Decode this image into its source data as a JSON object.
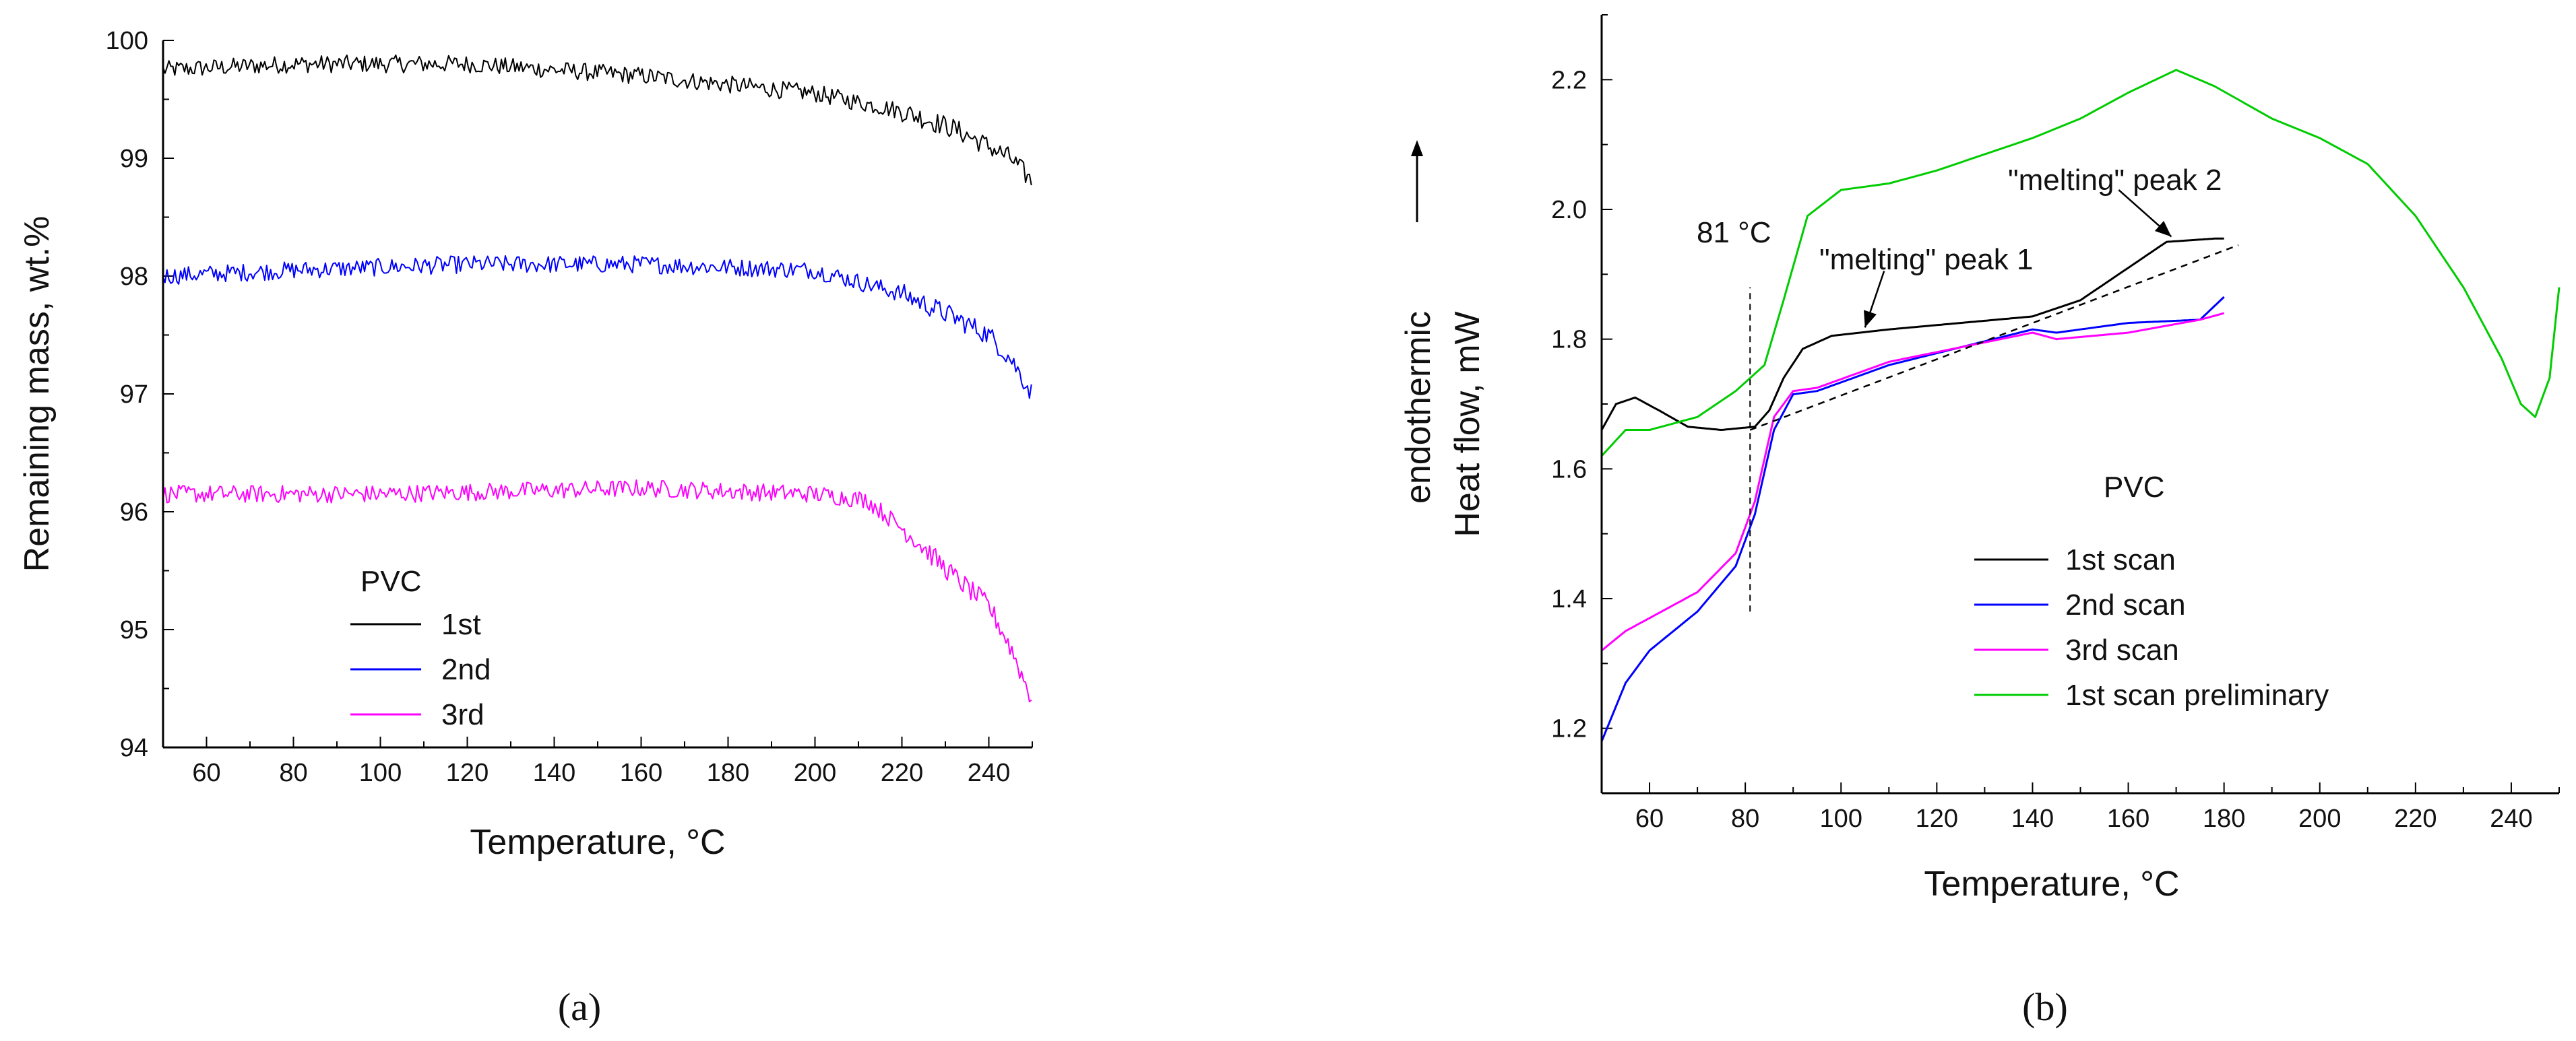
{
  "chart_data": [
    {
      "panel_label": "(a)",
      "type": "line",
      "title": "",
      "xlabel": "Temperature, °C",
      "ylabel": "Remaining mass, wt.%",
      "xlim": [
        50,
        250
      ],
      "ylim": [
        94,
        100
      ],
      "xticks": [
        60,
        80,
        100,
        120,
        140,
        160,
        180,
        200,
        220,
        240
      ],
      "yticks": [
        94,
        95,
        96,
        97,
        98,
        99,
        100
      ],
      "noisy": true,
      "legend": {
        "title": "PVC",
        "placement": "lower-left"
      },
      "series": [
        {
          "name": "1st",
          "color": "#000000",
          "x": [
            50,
            80,
            120,
            160,
            200,
            220,
            232,
            240,
            245,
            250
          ],
          "y": [
            99.75,
            99.8,
            99.8,
            99.7,
            99.55,
            99.4,
            99.25,
            99.1,
            99.0,
            98.8
          ]
        },
        {
          "name": "2nd",
          "color": "#0000ff",
          "x": [
            50,
            80,
            120,
            160,
            200,
            220,
            232,
            240,
            245,
            250
          ],
          "y": [
            98.0,
            98.05,
            98.1,
            98.1,
            98.05,
            97.85,
            97.65,
            97.5,
            97.3,
            97.0
          ]
        },
        {
          "name": "3rd",
          "color": "#ff00ff",
          "x": [
            50,
            100,
            160,
            200,
            212,
            222,
            232,
            240,
            245,
            250
          ],
          "y": [
            96.15,
            96.15,
            96.2,
            96.15,
            96.1,
            95.8,
            95.45,
            95.2,
            94.85,
            94.4
          ]
        }
      ]
    },
    {
      "panel_label": "(b)",
      "type": "line",
      "title": "",
      "xlabel": "Temperature, °C",
      "ylabel": "Heat flow, mW",
      "ylabel2": "endothermic",
      "xlim": [
        50,
        250
      ],
      "ylim": [
        1.1,
        2.3
      ],
      "xticks": [
        60,
        80,
        100,
        120,
        140,
        160,
        180,
        200,
        220,
        240
      ],
      "yticks": [
        1.2,
        1.4,
        1.6,
        1.8,
        2.0,
        2.2
      ],
      "legend": {
        "title": "PVC",
        "placement": "lower-middle"
      },
      "series": [
        {
          "name": "1st scan",
          "color": "#000000",
          "x": [
            50,
            53,
            57,
            62,
            68,
            75,
            82,
            85,
            88,
            92,
            98,
            110,
            140,
            150,
            160,
            168,
            178,
            180
          ],
          "y": [
            1.66,
            1.7,
            1.71,
            1.69,
            1.665,
            1.66,
            1.665,
            1.69,
            1.74,
            1.785,
            1.805,
            1.815,
            1.835,
            1.86,
            1.91,
            1.95,
            1.955,
            1.955
          ]
        },
        {
          "name": "2nd scan",
          "color": "#0000ff",
          "x": [
            50,
            55,
            60,
            70,
            78,
            82,
            86,
            90,
            95,
            110,
            140,
            145,
            160,
            175,
            180
          ],
          "y": [
            1.18,
            1.27,
            1.32,
            1.38,
            1.45,
            1.53,
            1.66,
            1.715,
            1.72,
            1.76,
            1.815,
            1.81,
            1.825,
            1.83,
            1.865
          ]
        },
        {
          "name": "3rd scan",
          "color": "#ff00ff",
          "x": [
            50,
            55,
            60,
            70,
            78,
            82,
            86,
            90,
            95,
            110,
            140,
            145,
            160,
            175,
            180
          ],
          "y": [
            1.32,
            1.35,
            1.37,
            1.41,
            1.47,
            1.55,
            1.68,
            1.72,
            1.725,
            1.765,
            1.81,
            1.8,
            1.81,
            1.83,
            1.84
          ]
        },
        {
          "name": "1st scan preliminary",
          "color": "#00cc00",
          "x": [
            50,
            55,
            60,
            70,
            78,
            84,
            88,
            93,
            100,
            110,
            120,
            140,
            150,
            160,
            170,
            178,
            190,
            200,
            210,
            220,
            230,
            238,
            242,
            245,
            248,
            250
          ],
          "y": [
            1.62,
            1.66,
            1.66,
            1.68,
            1.72,
            1.76,
            1.86,
            1.99,
            2.03,
            2.04,
            2.06,
            2.11,
            2.14,
            2.18,
            2.215,
            2.19,
            2.14,
            2.11,
            2.07,
            1.99,
            1.88,
            1.77,
            1.7,
            1.68,
            1.74,
            1.88
          ]
        }
      ],
      "baseline": {
        "x": [
          81,
          183
        ],
        "y": [
          1.66,
          1.945
        ]
      },
      "vline": {
        "x": 81,
        "y": [
          1.38,
          1.88
        ]
      },
      "annotations": {
        "t81": "81 °C",
        "peak1": "\"melting\" peak 1",
        "peak2": "\"melting\" peak 2"
      }
    }
  ]
}
